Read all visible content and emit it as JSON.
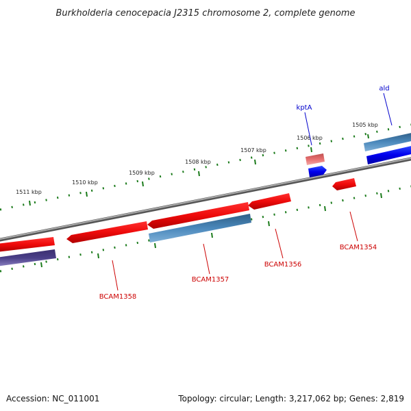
{
  "title": "Burkholderia cenocepacia J2315 chromosome 2, complete genome",
  "footer": {
    "accession": "Accession: NC_011001",
    "summary": "Topology: circular; Length: 3,217,062 bp; Genes: 2,819"
  },
  "ruler": {
    "ticks": [
      {
        "label": "1505 kbp"
      },
      {
        "label": "1506 kbp"
      },
      {
        "label": "1507 kbp"
      },
      {
        "label": "1508 kbp"
      },
      {
        "label": "1509 kbp"
      },
      {
        "label": "1510 kbp"
      },
      {
        "label": "1511 kbp"
      }
    ]
  },
  "genes": {
    "top": [
      {
        "label": "ald",
        "color": "#0000cc"
      },
      {
        "label": "kptA",
        "color": "#0000cc"
      }
    ],
    "bottom": [
      {
        "label": "BCAM1354",
        "color": "#cc0000"
      },
      {
        "label": "BCAM1356",
        "color": "#cc0000"
      },
      {
        "label": "BCAM1357",
        "color": "#cc0000"
      },
      {
        "label": "BCAM1358",
        "color": "#cc0000"
      }
    ]
  },
  "colors": {
    "backbone": "#808080",
    "tick": "#1a7a1a",
    "forward_red": "#ee1111",
    "forward_blue": "#0000ee",
    "steel_blue": "#3a78a8",
    "slate": "#4a3f88",
    "pink": "#e67070"
  }
}
